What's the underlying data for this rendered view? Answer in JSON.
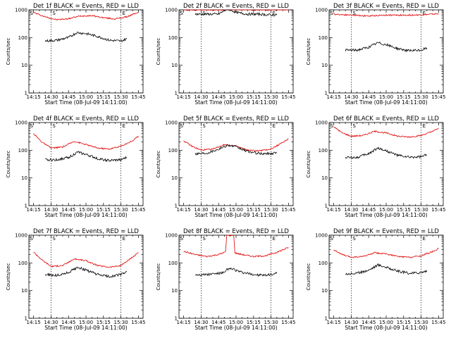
{
  "chart_data": [
    {
      "type": "line",
      "title": "Det 1f BLACK = Events, RED = LLD",
      "xlabel": "Start Time (08-Jul-09 14:11:00)",
      "ylabel": "Counts/sec",
      "x_ticks": [
        "14:15",
        "14:30",
        "14:45",
        "15:00",
        "15:15",
        "15:30",
        "15:45"
      ],
      "y_ticks": [
        "1",
        "10",
        "100",
        "1000"
      ],
      "ylim": [
        1,
        1000
      ],
      "yscale": "log",
      "markers": [
        "S",
        "E"
      ],
      "vlines": [
        "14:30",
        "15:30"
      ],
      "series": [
        {
          "color": "#e00000",
          "x": [
            "14:15",
            "14:25",
            "14:35",
            "14:45",
            "14:55",
            "15:05",
            "15:15",
            "15:25",
            "15:35",
            "15:45"
          ],
          "values": [
            800,
            560,
            440,
            480,
            600,
            620,
            520,
            470,
            560,
            820
          ]
        },
        {
          "color": "#000000",
          "x": [
            "14:25",
            "14:35",
            "14:45",
            "14:52",
            "15:00",
            "15:10",
            "15:20",
            "15:30",
            "15:35"
          ],
          "values": [
            75,
            80,
            100,
            150,
            140,
            110,
            80,
            75,
            90
          ]
        }
      ]
    },
    {
      "type": "line",
      "title": "Det 2f BLACK = Events, RED = LLD",
      "xlabel": "Start Time (08-Jul-09 14:11:00)",
      "ylabel": "Counts/sec",
      "x_ticks": [
        "14:15",
        "14:30",
        "14:45",
        "15:00",
        "15:15",
        "15:30",
        "15:45"
      ],
      "y_ticks": [
        "1",
        "10",
        "100",
        "1000"
      ],
      "ylim": [
        1,
        1000
      ],
      "yscale": "log",
      "markers": [
        "S",
        "E"
      ],
      "vlines": [
        "14:30",
        "15:30"
      ],
      "series": [
        {
          "color": "#e00000",
          "x": [
            "14:15",
            "14:30",
            "14:45",
            "15:00",
            "15:15",
            "15:30",
            "15:45"
          ],
          "values": [
            1000,
            1000,
            1000,
            1050,
            1000,
            1000,
            1050
          ]
        },
        {
          "color": "#000000",
          "x": [
            "14:25",
            "14:35",
            "14:45",
            "14:53",
            "15:00",
            "15:10",
            "15:20",
            "15:30",
            "15:35"
          ],
          "values": [
            700,
            700,
            700,
            1100,
            800,
            700,
            700,
            650,
            650
          ]
        }
      ]
    },
    {
      "type": "line",
      "title": "Det 3f BLACK = Events, RED = LLD",
      "xlabel": "Start Time (08-Jul-09 14:11:00)",
      "ylabel": "Counts/sec",
      "x_ticks": [
        "14:15",
        "14:30",
        "14:45",
        "15:00",
        "15:15",
        "15:30",
        "15:45"
      ],
      "y_ticks": [
        "1",
        "10",
        "100",
        "1000"
      ],
      "ylim": [
        1,
        1000
      ],
      "yscale": "log",
      "markers": [
        "S",
        "E"
      ],
      "vlines": [
        "14:30",
        "15:30"
      ],
      "series": [
        {
          "color": "#e00000",
          "x": [
            "14:15",
            "14:30",
            "14:45",
            "15:00",
            "15:15",
            "15:30",
            "15:45"
          ],
          "values": [
            700,
            650,
            600,
            650,
            640,
            660,
            720
          ]
        },
        {
          "color": "#000000",
          "x": [
            "14:25",
            "14:35",
            "14:45",
            "14:53",
            "15:00",
            "15:10",
            "15:20",
            "15:30",
            "15:35"
          ],
          "values": [
            35,
            35,
            45,
            65,
            55,
            40,
            33,
            35,
            42
          ]
        }
      ]
    },
    {
      "type": "line",
      "title": "Det 4f BLACK = Events, RED = LLD",
      "xlabel": "Start Time (08-Jul-09 14:11:00)",
      "ylabel": "Counts/sec",
      "x_ticks": [
        "14:15",
        "14:30",
        "14:45",
        "15:00",
        "15:15",
        "15:30",
        "15:45"
      ],
      "y_ticks": [
        "1",
        "10",
        "100",
        "1000"
      ],
      "ylim": [
        1,
        1000
      ],
      "yscale": "log",
      "markers": [
        "S",
        "E"
      ],
      "vlines": [
        "14:30",
        "15:30"
      ],
      "series": [
        {
          "color": "#e00000",
          "x": [
            "14:15",
            "14:22",
            "14:30",
            "14:40",
            "14:50",
            "15:00",
            "15:10",
            "15:20",
            "15:30",
            "15:40",
            "15:45"
          ],
          "values": [
            400,
            200,
            120,
            130,
            210,
            160,
            120,
            110,
            140,
            220,
            320
          ]
        },
        {
          "color": "#000000",
          "x": [
            "14:25",
            "14:35",
            "14:45",
            "14:53",
            "15:00",
            "15:10",
            "15:20",
            "15:30",
            "15:35"
          ],
          "values": [
            45,
            45,
            55,
            85,
            70,
            50,
            42,
            45,
            55
          ]
        }
      ]
    },
    {
      "type": "line",
      "title": "Det 5f BLACK = Events, RED = LLD",
      "xlabel": "Start Time (08-Jul-09 14:11:00)",
      "ylabel": "Counts/sec",
      "x_ticks": [
        "14:15",
        "14:30",
        "14:45",
        "15:00",
        "15:15",
        "15:30",
        "15:45"
      ],
      "y_ticks": [
        "1",
        "10",
        "100",
        "1000"
      ],
      "ylim": [
        1,
        1000
      ],
      "yscale": "log",
      "markers": [
        "S",
        "E"
      ],
      "vlines": [
        "14:30",
        "15:30"
      ],
      "series": [
        {
          "color": "#e00000",
          "x": [
            "14:15",
            "14:22",
            "14:30",
            "14:40",
            "14:50",
            "15:00",
            "15:10",
            "15:20",
            "15:30",
            "15:40",
            "15:45"
          ],
          "values": [
            220,
            140,
            100,
            110,
            160,
            140,
            100,
            95,
            110,
            190,
            260
          ]
        },
        {
          "color": "#000000",
          "x": [
            "14:25",
            "14:35",
            "14:45",
            "14:53",
            "15:00",
            "15:10",
            "15:20",
            "15:30",
            "15:35"
          ],
          "values": [
            75,
            80,
            110,
            155,
            130,
            90,
            75,
            75,
            85
          ]
        }
      ]
    },
    {
      "type": "line",
      "title": "Det 6f BLACK = Events, RED = LLD",
      "xlabel": "Start Time (08-Jul-09 14:11:00)",
      "ylabel": "Counts/sec",
      "x_ticks": [
        "14:15",
        "14:30",
        "14:45",
        "15:00",
        "15:15",
        "15:30",
        "15:45"
      ],
      "y_ticks": [
        "1",
        "10",
        "100",
        "1000"
      ],
      "ylim": [
        1,
        1000
      ],
      "yscale": "log",
      "markers": [
        "S",
        "E"
      ],
      "vlines": [
        "14:30",
        "15:30"
      ],
      "series": [
        {
          "color": "#e00000",
          "x": [
            "14:15",
            "14:22",
            "14:30",
            "14:40",
            "14:50",
            "15:00",
            "15:10",
            "15:20",
            "15:30",
            "15:40",
            "15:45"
          ],
          "values": [
            700,
            430,
            320,
            340,
            480,
            420,
            320,
            300,
            340,
            480,
            620
          ]
        },
        {
          "color": "#000000",
          "x": [
            "14:25",
            "14:35",
            "14:45",
            "14:53",
            "15:00",
            "15:10",
            "15:20",
            "15:30",
            "15:35"
          ],
          "values": [
            55,
            55,
            75,
            120,
            95,
            65,
            55,
            58,
            68
          ]
        }
      ]
    },
    {
      "type": "line",
      "title": "Det 7f BLACK = Events, RED = LLD",
      "xlabel": "Start Time (08-Jul-09 14:11:00)",
      "ylabel": "Counts/sec",
      "x_ticks": [
        "14:15",
        "14:30",
        "14:45",
        "15:00",
        "15:15",
        "15:30",
        "15:45"
      ],
      "y_ticks": [
        "1",
        "10",
        "100",
        "1000"
      ],
      "ylim": [
        1,
        1000
      ],
      "yscale": "log",
      "markers": [
        "S",
        "E"
      ],
      "vlines": [
        "14:30",
        "15:30"
      ],
      "series": [
        {
          "color": "#e00000",
          "x": [
            "14:15",
            "14:22",
            "14:30",
            "14:40",
            "14:50",
            "15:00",
            "15:10",
            "15:20",
            "15:30",
            "15:40",
            "15:45"
          ],
          "values": [
            250,
            130,
            75,
            80,
            140,
            120,
            80,
            70,
            80,
            160,
            240
          ]
        },
        {
          "color": "#000000",
          "x": [
            "14:25",
            "14:35",
            "14:45",
            "14:53",
            "15:00",
            "15:10",
            "15:20",
            "15:30",
            "15:35"
          ],
          "values": [
            38,
            35,
            45,
            70,
            55,
            38,
            32,
            38,
            48
          ]
        }
      ]
    },
    {
      "type": "line",
      "title": "Det 8f BLACK = Events, RED = LLD",
      "xlabel": "Start Time (08-Jul-09 14:11:00)",
      "ylabel": "Counts/sec",
      "x_ticks": [
        "14:15",
        "14:30",
        "14:45",
        "15:00",
        "15:15",
        "15:30",
        "15:45"
      ],
      "y_ticks": [
        "1",
        "10",
        "100",
        "1000"
      ],
      "ylim": [
        1,
        1000
      ],
      "yscale": "log",
      "markers": [
        "S",
        "E"
      ],
      "vlines": [
        "14:30",
        "15:30"
      ],
      "series": [
        {
          "color": "#e00000",
          "x": [
            "14:15",
            "14:25",
            "14:35",
            "14:45",
            "14:51",
            "14:52",
            "14:58",
            "14:59",
            "15:05",
            "15:15",
            "15:25",
            "15:35",
            "15:45"
          ],
          "values": [
            260,
            200,
            170,
            200,
            250,
            1000,
            1000,
            230,
            200,
            170,
            180,
            240,
            360
          ]
        },
        {
          "color": "#000000",
          "x": [
            "14:25",
            "14:35",
            "14:45",
            "14:51",
            "14:52",
            "14:58",
            "14:59",
            "15:05",
            "15:15",
            "15:25",
            "15:35"
          ],
          "values": [
            38,
            38,
            42,
            45,
            60,
            60,
            55,
            45,
            38,
            35,
            42
          ]
        }
      ]
    },
    {
      "type": "line",
      "title": "Det 9f BLACK = Events, RED = LLD",
      "xlabel": "Start Time (08-Jul-09 14:11:00)",
      "ylabel": "Counts/sec",
      "x_ticks": [
        "14:15",
        "14:30",
        "14:45",
        "15:00",
        "15:15",
        "15:30",
        "15:45"
      ],
      "y_ticks": [
        "1",
        "10",
        "100",
        "1000"
      ],
      "ylim": [
        1,
        1000
      ],
      "yscale": "log",
      "markers": [
        "S",
        "E"
      ],
      "vlines": [
        "14:30",
        "15:30"
      ],
      "series": [
        {
          "color": "#e00000",
          "x": [
            "14:15",
            "14:22",
            "14:30",
            "14:40",
            "14:50",
            "15:00",
            "15:10",
            "15:20",
            "15:30",
            "15:40",
            "15:45"
          ],
          "values": [
            300,
            200,
            160,
            170,
            230,
            210,
            170,
            160,
            180,
            260,
            330
          ]
        },
        {
          "color": "#000000",
          "x": [
            "14:25",
            "14:35",
            "14:45",
            "14:53",
            "15:00",
            "15:10",
            "15:20",
            "15:30",
            "15:35"
          ],
          "values": [
            40,
            42,
            55,
            85,
            70,
            50,
            42,
            45,
            52
          ]
        }
      ]
    }
  ]
}
